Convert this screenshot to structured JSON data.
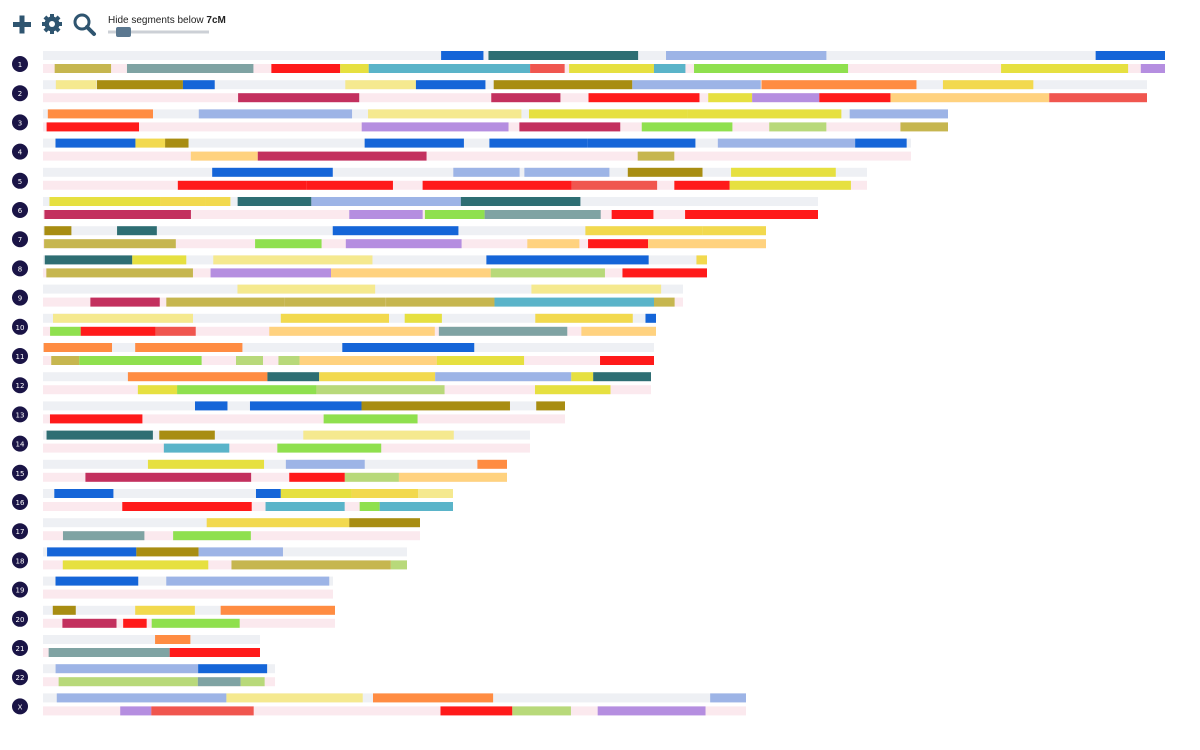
{
  "toolbar": {
    "filter_label": "Hide segments below",
    "filter_value": "7cM"
  },
  "chromosomes": [
    "1",
    "2",
    "3",
    "4",
    "5",
    "6",
    "7",
    "8",
    "9",
    "10",
    "11",
    "12",
    "13",
    "14",
    "15",
    "16",
    "17",
    "18",
    "19",
    "20",
    "21",
    "22",
    "X"
  ]
}
